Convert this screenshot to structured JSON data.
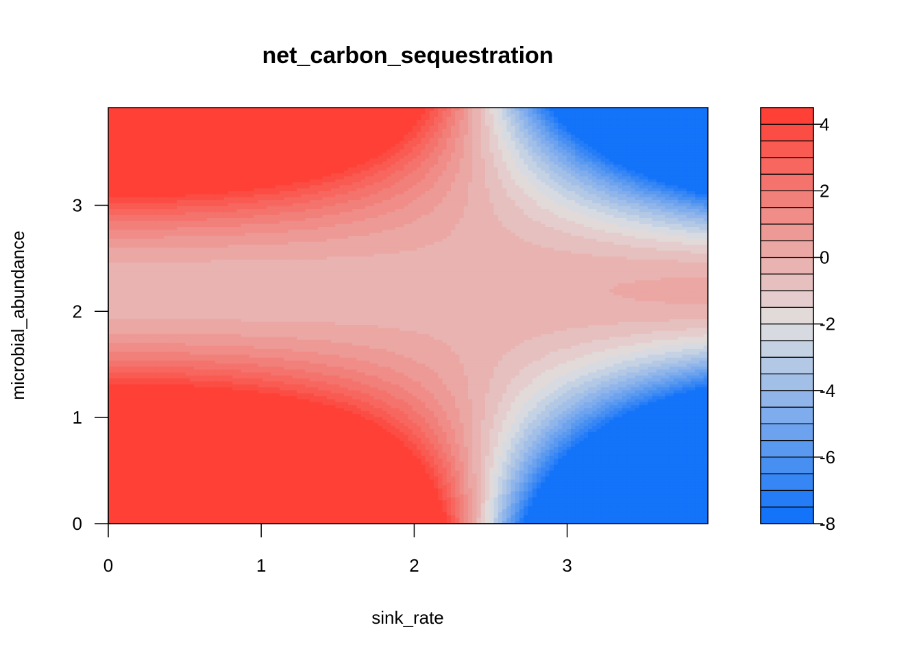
{
  "chart_data": {
    "type": "heatmap",
    "title": "net_carbon_sequestration",
    "xlabel": "sink_rate",
    "ylabel": "microbial_abundance",
    "xlim": [
      0,
      3.92
    ],
    "ylim": [
      0,
      3.92
    ],
    "x_ticks": [
      "0",
      "1",
      "2",
      "3"
    ],
    "y_ticks": [
      "0",
      "1",
      "2",
      "3"
    ],
    "surface": {
      "formula": "z = (a - x^2) * (y - b) * (y - c) + d",
      "a": 5.8,
      "b": 2.0,
      "c": 2.4,
      "d": -0.2
    },
    "levels": {
      "min": -8,
      "max": 4.5,
      "step": 0.5
    },
    "colorbar": {
      "ticks": [
        "4",
        "2",
        "0",
        "-2",
        "-4",
        "-6",
        "-8"
      ],
      "colors": {
        "low": "#0a6efa",
        "mid": "#e0e0e0",
        "high": "#ff3a30"
      }
    }
  }
}
